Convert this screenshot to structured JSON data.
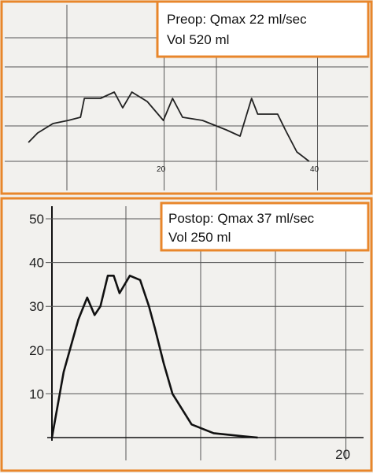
{
  "chart_data": [
    {
      "type": "line",
      "annotation": [
        "Preop: Qmax 22 ml/sec",
        "Vol 520 ml"
      ],
      "x": [
        2.3,
        3.5,
        5.5,
        7.5,
        9.1,
        9.6,
        11.7,
        13.5,
        14.6,
        15.8,
        17.8,
        19.9,
        21.1,
        22.4,
        25,
        28.1,
        29.9,
        31.4,
        32.2,
        34.8,
        35.8,
        37.3,
        38.9
      ],
      "values": [
        6,
        9,
        12,
        13,
        14,
        20,
        20,
        22,
        17,
        22,
        19,
        13,
        20,
        14,
        13,
        10,
        8,
        20,
        15,
        15,
        10,
        3,
        0
      ],
      "xlim": [
        -1.4,
        46
      ],
      "ylim": [
        0,
        50
      ],
      "xticks": [
        20,
        40
      ],
      "color": "#222"
    },
    {
      "type": "line",
      "annotation": [
        "Postop: Qmax 37 ml/sec",
        "Vol 250 ml"
      ],
      "x": [
        0,
        0.8,
        1.8,
        2.4,
        2.9,
        3.3,
        3.8,
        4.2,
        4.6,
        5.3,
        6,
        6.6,
        7,
        7.6,
        8.2,
        9.5,
        11,
        13,
        14
      ],
      "values": [
        0,
        15,
        27,
        32,
        28,
        30,
        37,
        37,
        33,
        37,
        36,
        30,
        25,
        17,
        10,
        3,
        1,
        0.3,
        0
      ],
      "xlim": [
        0,
        21.2
      ],
      "ylim": [
        0,
        50
      ],
      "xticks": [
        20
      ],
      "yticks": [
        10,
        20,
        30,
        40,
        50
      ],
      "color": "#111"
    }
  ]
}
